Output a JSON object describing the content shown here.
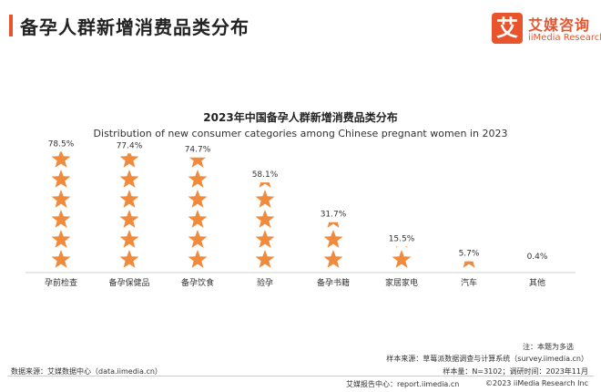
{
  "header": {
    "title": "备孕人群新增消费品类分布",
    "logo_mark": "艾",
    "logo_cn": "艾媒咨询",
    "logo_en": "iiMedia Research"
  },
  "chart_data": {
    "type": "bar",
    "style": "pictograph-stars",
    "title": "2023年中国备孕人群新增消费品类分布",
    "subtitle": "Distribution of new consumer categories among Chinese pregnant women in 2023",
    "categories": [
      "孕前检查",
      "备孕保健品",
      "备孕饮食",
      "验孕",
      "备孕书籍",
      "家居家电",
      "汽车",
      "其他"
    ],
    "values": [
      78.5,
      77.4,
      74.7,
      58.1,
      31.7,
      15.5,
      5.7,
      0.4
    ],
    "value_labels": [
      "78.5%",
      "77.4%",
      "74.7%",
      "58.1%",
      "31.7%",
      "15.5%",
      "5.7%",
      "0.4%"
    ],
    "unit": "%",
    "ylim": [
      0,
      80
    ],
    "stars_max": 6,
    "color": "#f08a3c"
  },
  "notes": {
    "note": "注：本题为多选",
    "sample_source": "样本来源：草莓派数据调查与计算系统（survey.iimedia.cn）",
    "data_source": "数据来源：艾媒数据中心（data.iimedia.cn）",
    "sample_info": "样本量：N=3102；调研时间：2023年11月"
  },
  "footer": {
    "report_center": "艾媒报告中心：report.iimedia.cn",
    "copyright": "©2023  iiMedia Research  Inc"
  }
}
